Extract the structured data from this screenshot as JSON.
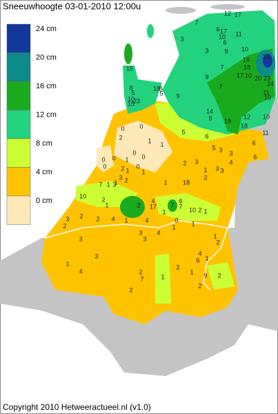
{
  "header": {
    "title": "Sneeuwhoogte 03-01-2010 12:00u"
  },
  "legend": [
    {
      "label": "24 cm",
      "color": "#13389c"
    },
    {
      "label": "20 cm",
      "color": "#0c8a8c"
    },
    {
      "label": "16 cm",
      "color": "#1aaa1e"
    },
    {
      "label": "12 cm",
      "color": "#22d27c"
    },
    {
      "label": "8 cm",
      "color": "#ccff33"
    },
    {
      "label": "4 cm",
      "color": "#ffc300"
    },
    {
      "label": "0 cm",
      "color": "#ffe8b8"
    }
  ],
  "stations": [
    "12",
    "17",
    "7",
    "6",
    "17",
    "10",
    "6",
    "11",
    "3",
    "3",
    "9",
    "10",
    "16",
    "23",
    "18",
    "7",
    "10",
    "17",
    "20",
    "23",
    "24",
    "9",
    "7",
    "11",
    "10",
    "15",
    "8",
    "5",
    "10",
    "15",
    "23",
    "18",
    "8",
    "5",
    "9",
    "14",
    "9",
    "19",
    "18",
    "12",
    "10",
    "11",
    "5",
    "6",
    "6",
    "0",
    "0",
    "2",
    "1",
    "1",
    "5",
    "3",
    "3",
    "6",
    "0",
    "0",
    "0",
    "0",
    "0",
    "2",
    "3",
    "4",
    "1",
    "2",
    "1",
    "0",
    "3",
    "1",
    "7",
    "1",
    "3",
    "2",
    "1",
    "2",
    "1",
    "3",
    "3",
    "10",
    "2",
    "1",
    "1",
    "18",
    "2",
    "4",
    "17",
    "7",
    "6",
    "7",
    "10",
    "2",
    "1",
    "1",
    "0",
    "1",
    "1",
    "2",
    "3",
    "2",
    "2",
    "4",
    "1",
    "4",
    "3",
    "3",
    "4",
    "1",
    "2",
    "3",
    "3",
    "4",
    "6",
    "1",
    "1",
    "2",
    "4",
    "2",
    "7",
    "1",
    "1",
    "9",
    "2",
    "2",
    "2"
  ],
  "footer": {
    "copyright": "Copyright 2010 Hetweeractueel.nl (v1.0)"
  }
}
